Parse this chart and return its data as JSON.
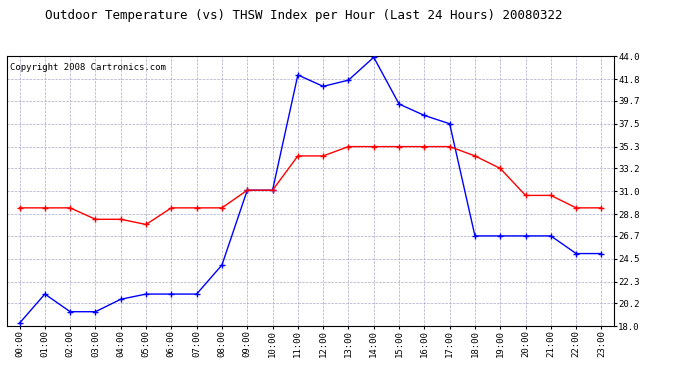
{
  "title": "Outdoor Temperature (vs) THSW Index per Hour (Last 24 Hours) 20080322",
  "copyright": "Copyright 2008 Cartronics.com",
  "hours": [
    "00:00",
    "01:00",
    "02:00",
    "03:00",
    "04:00",
    "05:00",
    "06:00",
    "07:00",
    "08:00",
    "09:00",
    "10:00",
    "11:00",
    "12:00",
    "13:00",
    "14:00",
    "15:00",
    "16:00",
    "17:00",
    "18:00",
    "19:00",
    "20:00",
    "21:00",
    "22:00",
    "23:00"
  ],
  "blue_data": [
    18.3,
    21.1,
    19.4,
    19.4,
    20.6,
    21.1,
    21.1,
    21.1,
    23.9,
    31.1,
    31.1,
    42.2,
    41.1,
    41.7,
    43.9,
    39.4,
    38.3,
    37.5,
    26.7,
    26.7,
    26.7,
    26.7,
    25.0,
    25.0
  ],
  "red_data": [
    29.4,
    29.4,
    29.4,
    28.3,
    28.3,
    27.8,
    29.4,
    29.4,
    29.4,
    31.1,
    31.1,
    34.4,
    34.4,
    35.3,
    35.3,
    35.3,
    35.3,
    35.3,
    34.4,
    33.2,
    30.6,
    30.6,
    29.4,
    29.4
  ],
  "ylim_min": 18.0,
  "ylim_max": 44.0,
  "yticks": [
    18.0,
    20.2,
    22.3,
    24.5,
    26.7,
    28.8,
    31.0,
    33.2,
    35.3,
    37.5,
    39.7,
    41.8,
    44.0
  ],
  "blue_color": "#0000FF",
  "red_color": "#FF0000",
  "bg_color": "#FFFFFF",
  "grid_color": "#AAAACC",
  "title_color": "#000000",
  "title_fontsize": 9,
  "copyright_fontsize": 6.5
}
